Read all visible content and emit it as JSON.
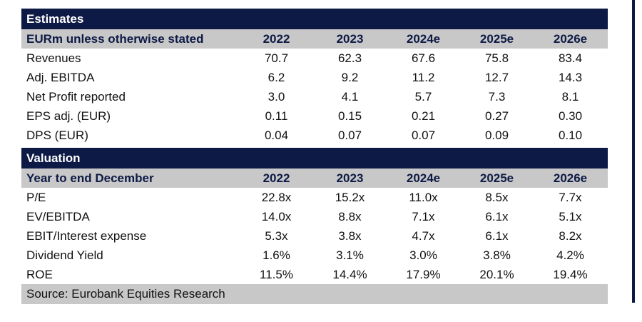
{
  "estimates": {
    "title": "Estimates",
    "header_label": "EURm unless otherwise stated",
    "years": [
      "2022",
      "2023",
      "2024e",
      "2025e",
      "2026e"
    ],
    "rows": [
      {
        "label": "Revenues",
        "values": [
          "70.7",
          "62.3",
          "67.6",
          "75.8",
          "83.4"
        ]
      },
      {
        "label": "Adj. EBITDA",
        "values": [
          "6.2",
          "9.2",
          "11.2",
          "12.7",
          "14.3"
        ]
      },
      {
        "label": "Net Profit reported",
        "values": [
          "3.0",
          "4.1",
          "5.7",
          "7.3",
          "8.1"
        ]
      },
      {
        "label": "EPS adj. (EUR)",
        "values": [
          "0.11",
          "0.15",
          "0.21",
          "0.27",
          "0.30"
        ]
      },
      {
        "label": "DPS (EUR)",
        "values": [
          "0.04",
          "0.07",
          "0.07",
          "0.09",
          "0.10"
        ]
      }
    ]
  },
  "valuation": {
    "title": "Valuation",
    "header_label": "Year to end December",
    "years": [
      "2022",
      "2023",
      "2024e",
      "2025e",
      "2026e"
    ],
    "rows": [
      {
        "label": "P/E",
        "values": [
          "22.8x",
          "15.2x",
          "11.0x",
          "8.5x",
          "7.7x"
        ]
      },
      {
        "label": "EV/EBITDA",
        "values": [
          "14.0x",
          "8.8x",
          "7.1x",
          "6.1x",
          "5.1x"
        ]
      },
      {
        "label": "EBIT/Interest expense",
        "values": [
          "5.3x",
          "3.8x",
          "4.7x",
          "6.1x",
          "8.2x"
        ]
      },
      {
        "label": "Dividend Yield",
        "values": [
          "1.6%",
          "3.1%",
          "3.0%",
          "3.8%",
          "4.2%"
        ]
      },
      {
        "label": "ROE",
        "values": [
          "11.5%",
          "14.4%",
          "17.9%",
          "20.1%",
          "19.4%"
        ]
      }
    ]
  },
  "source": "Source: Eurobank Equities Research",
  "colors": {
    "navy": "#0d1a45",
    "header_grey": "#c8c8c8"
  }
}
